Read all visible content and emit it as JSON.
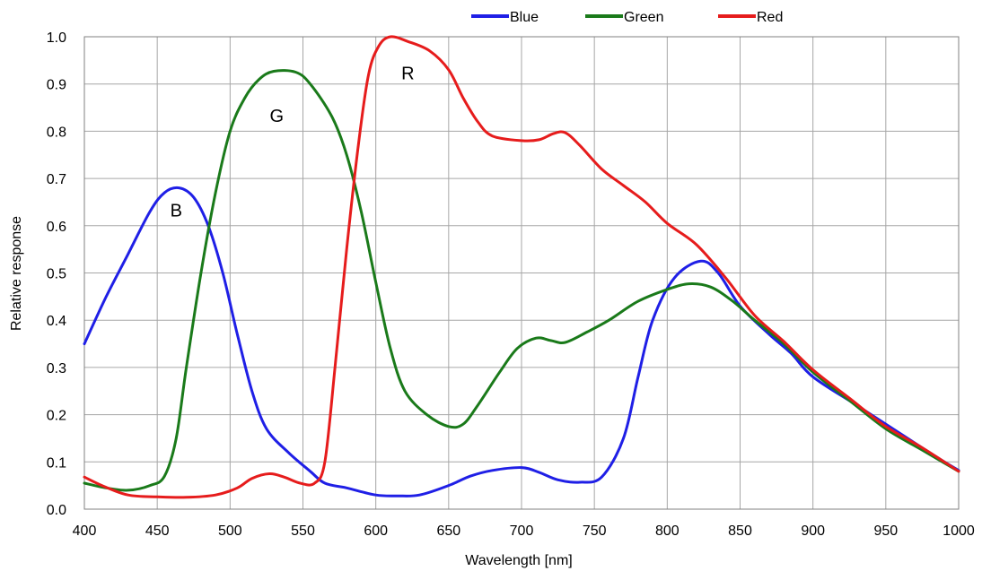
{
  "chart_data": {
    "type": "line",
    "xlabel": "Wavelength [nm]",
    "ylabel": "Relative response",
    "xlim": [
      400,
      1000
    ],
    "ylim": [
      0,
      1.0
    ],
    "xticks": [
      "400",
      "450",
      "500",
      "550",
      "600",
      "650",
      "700",
      "750",
      "800",
      "850",
      "900",
      "950",
      "1000"
    ],
    "yticks": [
      "0.0",
      "0.1",
      "0.2",
      "0.3",
      "0.4",
      "0.5",
      "0.6",
      "0.7",
      "0.8",
      "0.9",
      "1.0"
    ],
    "grid": true,
    "legend_position": "top-right",
    "series": [
      {
        "name": "Blue",
        "color": "#1f1fe6",
        "label": "B",
        "points": [
          [
            400,
            0.35
          ],
          [
            415,
            0.45
          ],
          [
            430,
            0.54
          ],
          [
            445,
            0.63
          ],
          [
            455,
            0.67
          ],
          [
            465,
            0.68
          ],
          [
            475,
            0.66
          ],
          [
            485,
            0.6
          ],
          [
            495,
            0.5
          ],
          [
            505,
            0.37
          ],
          [
            515,
            0.25
          ],
          [
            525,
            0.17
          ],
          [
            540,
            0.12
          ],
          [
            555,
            0.08
          ],
          [
            565,
            0.055
          ],
          [
            580,
            0.045
          ],
          [
            600,
            0.03
          ],
          [
            615,
            0.028
          ],
          [
            630,
            0.03
          ],
          [
            650,
            0.05
          ],
          [
            665,
            0.07
          ],
          [
            680,
            0.082
          ],
          [
            700,
            0.088
          ],
          [
            712,
            0.078
          ],
          [
            725,
            0.062
          ],
          [
            740,
            0.057
          ],
          [
            755,
            0.068
          ],
          [
            770,
            0.15
          ],
          [
            780,
            0.28
          ],
          [
            790,
            0.4
          ],
          [
            805,
            0.49
          ],
          [
            823,
            0.525
          ],
          [
            835,
            0.5
          ],
          [
            850,
            0.43
          ],
          [
            870,
            0.37
          ],
          [
            885,
            0.33
          ],
          [
            900,
            0.28
          ],
          [
            930,
            0.22
          ],
          [
            960,
            0.16
          ],
          [
            985,
            0.11
          ],
          [
            1000,
            0.082
          ]
        ],
        "label_at": [
          463,
          0.62
        ]
      },
      {
        "name": "Green",
        "color": "#1a7a1a",
        "label": "G",
        "points": [
          [
            400,
            0.055
          ],
          [
            415,
            0.045
          ],
          [
            430,
            0.04
          ],
          [
            445,
            0.05
          ],
          [
            455,
            0.07
          ],
          [
            463,
            0.15
          ],
          [
            470,
            0.3
          ],
          [
            480,
            0.5
          ],
          [
            490,
            0.67
          ],
          [
            500,
            0.8
          ],
          [
            510,
            0.87
          ],
          [
            520,
            0.91
          ],
          [
            530,
            0.927
          ],
          [
            545,
            0.925
          ],
          [
            555,
            0.9
          ],
          [
            570,
            0.83
          ],
          [
            580,
            0.75
          ],
          [
            590,
            0.63
          ],
          [
            600,
            0.48
          ],
          [
            610,
            0.34
          ],
          [
            620,
            0.25
          ],
          [
            635,
            0.2
          ],
          [
            650,
            0.175
          ],
          [
            660,
            0.18
          ],
          [
            670,
            0.22
          ],
          [
            685,
            0.29
          ],
          [
            697,
            0.34
          ],
          [
            710,
            0.362
          ],
          [
            720,
            0.357
          ],
          [
            730,
            0.353
          ],
          [
            745,
            0.375
          ],
          [
            760,
            0.4
          ],
          [
            780,
            0.44
          ],
          [
            800,
            0.465
          ],
          [
            815,
            0.477
          ],
          [
            830,
            0.47
          ],
          [
            845,
            0.44
          ],
          [
            860,
            0.4
          ],
          [
            880,
            0.35
          ],
          [
            900,
            0.29
          ],
          [
            925,
            0.23
          ],
          [
            950,
            0.17
          ],
          [
            975,
            0.125
          ],
          [
            1000,
            0.08
          ]
        ],
        "label_at": [
          532,
          0.82
        ]
      },
      {
        "name": "Red",
        "color": "#e61c1c",
        "label": "R",
        "points": [
          [
            400,
            0.068
          ],
          [
            412,
            0.05
          ],
          [
            430,
            0.03
          ],
          [
            450,
            0.026
          ],
          [
            470,
            0.025
          ],
          [
            490,
            0.03
          ],
          [
            505,
            0.045
          ],
          [
            515,
            0.065
          ],
          [
            527,
            0.075
          ],
          [
            537,
            0.068
          ],
          [
            548,
            0.055
          ],
          [
            558,
            0.055
          ],
          [
            565,
            0.1
          ],
          [
            572,
            0.3
          ],
          [
            580,
            0.55
          ],
          [
            588,
            0.77
          ],
          [
            595,
            0.92
          ],
          [
            602,
            0.98
          ],
          [
            610,
            1.0
          ],
          [
            622,
            0.99
          ],
          [
            637,
            0.97
          ],
          [
            650,
            0.93
          ],
          [
            660,
            0.87
          ],
          [
            670,
            0.82
          ],
          [
            680,
            0.79
          ],
          [
            700,
            0.78
          ],
          [
            712,
            0.782
          ],
          [
            722,
            0.795
          ],
          [
            730,
            0.797
          ],
          [
            740,
            0.77
          ],
          [
            755,
            0.72
          ],
          [
            770,
            0.685
          ],
          [
            785,
            0.65
          ],
          [
            800,
            0.605
          ],
          [
            820,
            0.56
          ],
          [
            840,
            0.49
          ],
          [
            860,
            0.41
          ],
          [
            880,
            0.355
          ],
          [
            900,
            0.295
          ],
          [
            925,
            0.235
          ],
          [
            950,
            0.175
          ],
          [
            975,
            0.13
          ],
          [
            1000,
            0.08
          ]
        ],
        "label_at": [
          622,
          0.91
        ]
      }
    ]
  }
}
